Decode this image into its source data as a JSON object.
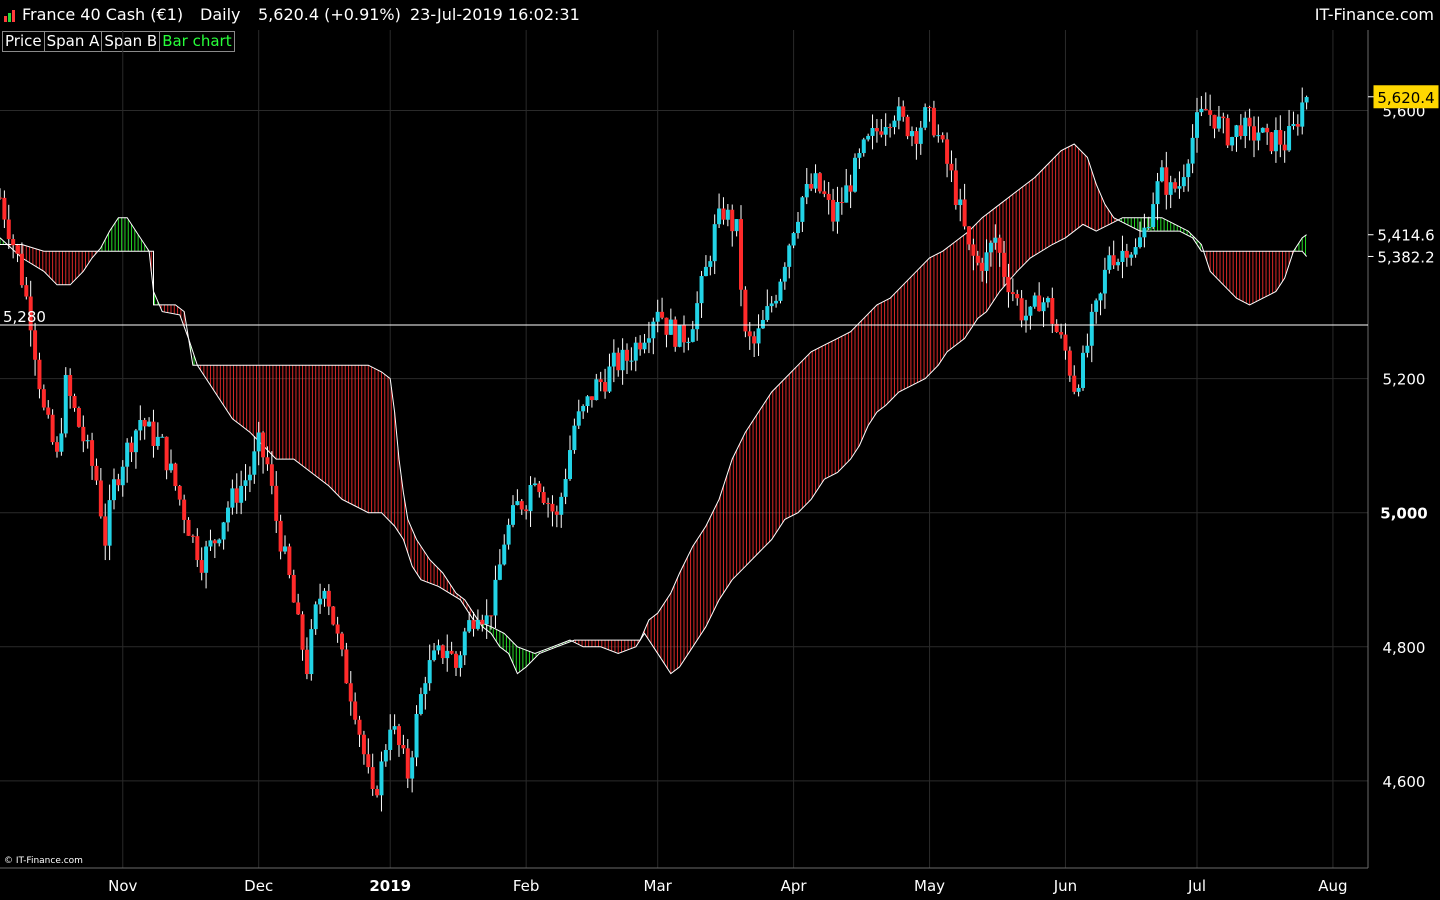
{
  "header": {
    "instrument": "France 40 Cash (€1)",
    "interval": "Daily",
    "quote": "5,620.4 (+0.91%)",
    "datetime": "23-Jul-2019 16:02:31",
    "brand": "IT-Finance.com"
  },
  "legend": {
    "items": [
      "Price",
      "Span A",
      "Span B",
      "Bar chart"
    ],
    "active": "Bar chart"
  },
  "copyright": "© IT-Finance.com",
  "colors": {
    "background": "#000000",
    "up": "#22d3e6",
    "down": "#ff2a2a",
    "cloud_bull": "#2bff2b",
    "cloud_bear": "#ff3030",
    "last_price_badge": "#ffd700"
  },
  "chart_data": {
    "type": "candlestick",
    "ylim": [
      4470,
      5720
    ],
    "y_ticks": [
      4600,
      4800,
      5000,
      5200,
      5600
    ],
    "y_tick_labels": [
      "4,600",
      "4,800",
      "5,000",
      "5,200",
      "5,600"
    ],
    "x_ticks": [
      {
        "label": "Nov",
        "day": 18
      },
      {
        "label": "Dec",
        "day": 49
      },
      {
        "label": "2019",
        "day": 79,
        "bold": true
      },
      {
        "label": "Feb",
        "day": 110
      },
      {
        "label": "Mar",
        "day": 140
      },
      {
        "label": "Apr",
        "day": 171
      },
      {
        "label": "May",
        "day": 202
      },
      {
        "label": "Jun",
        "day": 233
      },
      {
        "label": "Jul",
        "day": 263
      },
      {
        "label": "Aug",
        "day": 294
      }
    ],
    "x_range_days": [
      -10,
      302
    ],
    "horizontal_line": {
      "value": 5280,
      "label": "5,280"
    },
    "price_badges": [
      {
        "value": 5620.4,
        "label": "5,620.4",
        "style": "highlight"
      },
      {
        "value": 5414.6,
        "label": "5,414.6",
        "style": "plain"
      },
      {
        "value": 5382.2,
        "label": "5,382.2",
        "style": "plain"
      }
    ],
    "price_path": [
      [
        -10,
        5470
      ],
      [
        -6,
        5380
      ],
      [
        -3,
        5290
      ],
      [
        0,
        5150
      ],
      [
        3,
        5080
      ],
      [
        5,
        5190
      ],
      [
        8,
        5130
      ],
      [
        12,
        5050
      ],
      [
        14,
        4960
      ],
      [
        16,
        5040
      ],
      [
        18,
        5080
      ],
      [
        22,
        5140
      ],
      [
        24,
        5120
      ],
      [
        27,
        5100
      ],
      [
        29,
        5060
      ],
      [
        32,
        5000
      ],
      [
        34,
        4960
      ],
      [
        36,
        4930
      ],
      [
        39,
        4960
      ],
      [
        42,
        5010
      ],
      [
        44,
        5030
      ],
      [
        47,
        5060
      ],
      [
        49,
        5100
      ],
      [
        51,
        5070
      ],
      [
        53,
        4990
      ],
      [
        56,
        4900
      ],
      [
        58,
        4830
      ],
      [
        60,
        4770
      ],
      [
        62,
        4850
      ],
      [
        64,
        4900
      ],
      [
        66,
        4840
      ],
      [
        68,
        4780
      ],
      [
        71,
        4710
      ],
      [
        73,
        4640
      ],
      [
        75,
        4570
      ],
      [
        77,
        4620
      ],
      [
        79,
        4690
      ],
      [
        81,
        4650
      ],
      [
        83,
        4610
      ],
      [
        85,
        4690
      ],
      [
        87,
        4760
      ],
      [
        89,
        4780
      ],
      [
        92,
        4800
      ],
      [
        94,
        4770
      ],
      [
        96,
        4820
      ],
      [
        99,
        4860
      ],
      [
        101,
        4840
      ],
      [
        103,
        4880
      ],
      [
        105,
        4960
      ],
      [
        108,
        5010
      ],
      [
        110,
        5020
      ],
      [
        112,
        5060
      ],
      [
        114,
        5030
      ],
      [
        117,
        4990
      ],
      [
        119,
        5060
      ],
      [
        121,
        5130
      ],
      [
        123,
        5150
      ],
      [
        126,
        5190
      ],
      [
        128,
        5200
      ],
      [
        130,
        5220
      ],
      [
        133,
        5230
      ],
      [
        135,
        5250
      ],
      [
        138,
        5280
      ],
      [
        140,
        5310
      ],
      [
        142,
        5280
      ],
      [
        145,
        5260
      ],
      [
        147,
        5270
      ],
      [
        149,
        5310
      ],
      [
        151,
        5360
      ],
      [
        153,
        5420
      ],
      [
        155,
        5450
      ],
      [
        158,
        5420
      ],
      [
        160,
        5260
      ],
      [
        162,
        5250
      ],
      [
        164,
        5280
      ],
      [
        167,
        5330
      ],
      [
        169,
        5380
      ],
      [
        171,
        5430
      ],
      [
        173,
        5470
      ],
      [
        176,
        5490
      ],
      [
        178,
        5470
      ],
      [
        180,
        5440
      ],
      [
        183,
        5480
      ],
      [
        185,
        5510
      ],
      [
        187,
        5540
      ],
      [
        189,
        5560
      ],
      [
        192,
        5590
      ],
      [
        194,
        5600
      ],
      [
        196,
        5580
      ],
      [
        199,
        5570
      ],
      [
        201,
        5590
      ],
      [
        203,
        5580
      ],
      [
        205,
        5540
      ],
      [
        207,
        5500
      ],
      [
        209,
        5450
      ],
      [
        211,
        5390
      ],
      [
        213,
        5370
      ],
      [
        215,
        5380
      ],
      [
        217,
        5410
      ],
      [
        219,
        5360
      ],
      [
        221,
        5330
      ],
      [
        223,
        5300
      ],
      [
        225,
        5290
      ],
      [
        227,
        5320
      ],
      [
        229,
        5310
      ],
      [
        231,
        5270
      ],
      [
        233,
        5240
      ],
      [
        235,
        5190
      ],
      [
        237,
        5220
      ],
      [
        239,
        5280
      ],
      [
        241,
        5320
      ],
      [
        243,
        5390
      ],
      [
        245,
        5380
      ],
      [
        247,
        5400
      ],
      [
        249,
        5390
      ],
      [
        251,
        5420
      ],
      [
        253,
        5470
      ],
      [
        255,
        5500
      ],
      [
        257,
        5480
      ],
      [
        259,
        5490
      ],
      [
        261,
        5540
      ],
      [
        263,
        5580
      ],
      [
        265,
        5600
      ],
      [
        267,
        5590
      ],
      [
        269,
        5570
      ],
      [
        271,
        5560
      ],
      [
        273,
        5580
      ],
      [
        275,
        5560
      ],
      [
        277,
        5570
      ],
      [
        279,
        5550
      ],
      [
        281,
        5560
      ],
      [
        283,
        5550
      ],
      [
        285,
        5570
      ],
      [
        287,
        5610
      ],
      [
        288,
        5620
      ]
    ],
    "span_a": [
      [
        -10,
        5410
      ],
      [
        -5,
        5380
      ],
      [
        0,
        5360
      ],
      [
        3,
        5340
      ],
      [
        6,
        5340
      ],
      [
        9,
        5360
      ],
      [
        11,
        5380
      ],
      [
        13,
        5395
      ],
      [
        15,
        5420
      ],
      [
        17,
        5440
      ],
      [
        19,
        5440
      ],
      [
        21,
        5420
      ],
      [
        23,
        5400
      ],
      [
        24,
        5390
      ],
      [
        25,
        5330
      ],
      [
        27,
        5300
      ],
      [
        31,
        5295
      ],
      [
        33,
        5260
      ],
      [
        35,
        5220
      ],
      [
        37,
        5200
      ],
      [
        41,
        5160
      ],
      [
        43,
        5140
      ],
      [
        45,
        5130
      ],
      [
        47,
        5120
      ],
      [
        50,
        5100
      ],
      [
        53,
        5080
      ],
      [
        57,
        5080
      ],
      [
        61,
        5060
      ],
      [
        65,
        5040
      ],
      [
        68,
        5020
      ],
      [
        71,
        5010
      ],
      [
        74,
        5000
      ],
      [
        77,
        5000
      ],
      [
        80,
        4980
      ],
      [
        82,
        4960
      ],
      [
        84,
        4920
      ],
      [
        86,
        4900
      ],
      [
        90,
        4890
      ],
      [
        95,
        4870
      ],
      [
        98,
        4840
      ],
      [
        102,
        4830
      ],
      [
        105,
        4820
      ],
      [
        108,
        4800
      ],
      [
        112,
        4790
      ],
      [
        116,
        4800
      ],
      [
        120,
        4810
      ],
      [
        123,
        4800
      ],
      [
        127,
        4800
      ],
      [
        131,
        4790
      ],
      [
        135,
        4800
      ],
      [
        137,
        4820
      ],
      [
        139,
        4800
      ],
      [
        141,
        4780
      ],
      [
        143,
        4760
      ],
      [
        145,
        4770
      ],
      [
        148,
        4800
      ],
      [
        151,
        4830
      ],
      [
        154,
        4870
      ],
      [
        157,
        4900
      ],
      [
        160,
        4920
      ],
      [
        163,
        4940
      ],
      [
        166,
        4960
      ],
      [
        169,
        4990
      ],
      [
        172,
        5000
      ],
      [
        175,
        5020
      ],
      [
        178,
        5050
      ],
      [
        181,
        5060
      ],
      [
        184,
        5080
      ],
      [
        186,
        5100
      ],
      [
        188,
        5130
      ],
      [
        190,
        5150
      ],
      [
        192,
        5160
      ],
      [
        195,
        5180
      ],
      [
        198,
        5190
      ],
      [
        201,
        5200
      ],
      [
        204,
        5220
      ],
      [
        206,
        5240
      ],
      [
        210,
        5260
      ],
      [
        213,
        5290
      ],
      [
        215,
        5300
      ],
      [
        218,
        5330
      ],
      [
        222,
        5360
      ],
      [
        225,
        5380
      ],
      [
        230,
        5400
      ],
      [
        233,
        5410
      ],
      [
        237,
        5430
      ],
      [
        240,
        5420
      ],
      [
        243,
        5430
      ],
      [
        246,
        5440
      ],
      [
        251,
        5440
      ],
      [
        255,
        5440
      ],
      [
        258,
        5430
      ],
      [
        261,
        5420
      ],
      [
        264,
        5400
      ],
      [
        266,
        5360
      ],
      [
        269,
        5340
      ],
      [
        272,
        5320
      ],
      [
        275,
        5310
      ],
      [
        278,
        5320
      ],
      [
        281,
        5330
      ],
      [
        283,
        5350
      ],
      [
        285,
        5390
      ],
      [
        287,
        5410
      ],
      [
        288,
        5414.6
      ]
    ],
    "span_b": [
      [
        -10,
        5400
      ],
      [
        -5,
        5400
      ],
      [
        0,
        5390
      ],
      [
        5,
        5390
      ],
      [
        10,
        5390
      ],
      [
        15,
        5390
      ],
      [
        20,
        5390
      ],
      [
        25,
        5390
      ],
      [
        25,
        5310
      ],
      [
        30,
        5310
      ],
      [
        32,
        5300
      ],
      [
        34,
        5220
      ],
      [
        38,
        5220
      ],
      [
        42,
        5220
      ],
      [
        46,
        5220
      ],
      [
        50,
        5220
      ],
      [
        54,
        5220
      ],
      [
        58,
        5220
      ],
      [
        62,
        5220
      ],
      [
        66,
        5220
      ],
      [
        70,
        5220
      ],
      [
        74,
        5220
      ],
      [
        77,
        5210
      ],
      [
        79,
        5200
      ],
      [
        80,
        5150
      ],
      [
        81,
        5080
      ],
      [
        82,
        5030
      ],
      [
        83,
        4990
      ],
      [
        85,
        4960
      ],
      [
        88,
        4930
      ],
      [
        91,
        4910
      ],
      [
        94,
        4880
      ],
      [
        96,
        4870
      ],
      [
        98,
        4850
      ],
      [
        100,
        4830
      ],
      [
        102,
        4820
      ],
      [
        104,
        4800
      ],
      [
        106,
        4790
      ],
      [
        108,
        4760
      ],
      [
        110,
        4770
      ],
      [
        113,
        4790
      ],
      [
        117,
        4800
      ],
      [
        121,
        4810
      ],
      [
        126,
        4810
      ],
      [
        131,
        4810
      ],
      [
        136,
        4810
      ],
      [
        138,
        4840
      ],
      [
        140,
        4850
      ],
      [
        143,
        4880
      ],
      [
        145,
        4910
      ],
      [
        148,
        4950
      ],
      [
        151,
        4980
      ],
      [
        154,
        5020
      ],
      [
        157,
        5080
      ],
      [
        160,
        5120
      ],
      [
        163,
        5150
      ],
      [
        166,
        5180
      ],
      [
        169,
        5200
      ],
      [
        172,
        5220
      ],
      [
        175,
        5240
      ],
      [
        178,
        5250
      ],
      [
        181,
        5260
      ],
      [
        184,
        5270
      ],
      [
        187,
        5290
      ],
      [
        190,
        5310
      ],
      [
        193,
        5320
      ],
      [
        196,
        5340
      ],
      [
        199,
        5360
      ],
      [
        202,
        5380
      ],
      [
        205,
        5390
      ],
      [
        207,
        5400
      ],
      [
        211,
        5420
      ],
      [
        214,
        5440
      ],
      [
        218,
        5460
      ],
      [
        222,
        5480
      ],
      [
        226,
        5500
      ],
      [
        229,
        5520
      ],
      [
        232,
        5540
      ],
      [
        235,
        5550
      ],
      [
        238,
        5530
      ],
      [
        240,
        5490
      ],
      [
        242,
        5460
      ],
      [
        244,
        5440
      ],
      [
        247,
        5430
      ],
      [
        250,
        5420
      ],
      [
        253,
        5420
      ],
      [
        256,
        5420
      ],
      [
        259,
        5420
      ],
      [
        262,
        5410
      ],
      [
        264,
        5390
      ],
      [
        267,
        5390
      ],
      [
        270,
        5390
      ],
      [
        273,
        5390
      ],
      [
        276,
        5390
      ],
      [
        279,
        5390
      ],
      [
        282,
        5390
      ],
      [
        285,
        5390
      ],
      [
        287,
        5390
      ],
      [
        288,
        5382.2
      ]
    ]
  }
}
